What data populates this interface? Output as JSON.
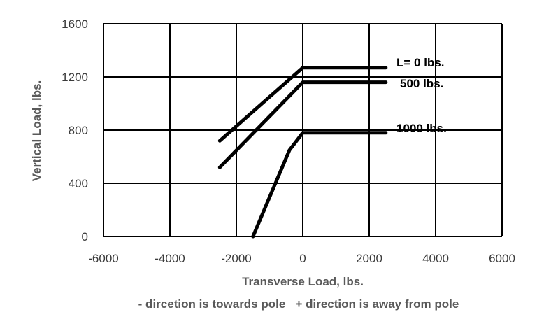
{
  "chart_data": {
    "type": "line",
    "xlabel": "Transverse Load, lbs.",
    "ylabel": "Vertical Load, lbs.",
    "note": "- dircetion is towards pole   + direction is away from pole",
    "xlim": [
      -6000,
      6000
    ],
    "ylim": [
      0,
      1600
    ],
    "xticks": [
      -6000,
      -4000,
      -2000,
      0,
      2000,
      4000,
      6000
    ],
    "yticks": [
      0,
      400,
      800,
      1200,
      1600
    ],
    "grid": true,
    "legend": "inline labels at right end of curves",
    "series": [
      {
        "name": "L=  0 lbs.",
        "x": [
          -2500,
          0,
          2500
        ],
        "y": [
          720,
          1270,
          1270
        ]
      },
      {
        "name": "500 lbs.",
        "x": [
          -2500,
          0,
          2500
        ],
        "y": [
          520,
          1160,
          1160
        ]
      },
      {
        "name": "1000 lbs.",
        "x": [
          -1500,
          -400,
          0,
          2500
        ],
        "y": [
          0,
          650,
          780,
          780
        ]
      }
    ],
    "line_color": "#000000"
  }
}
